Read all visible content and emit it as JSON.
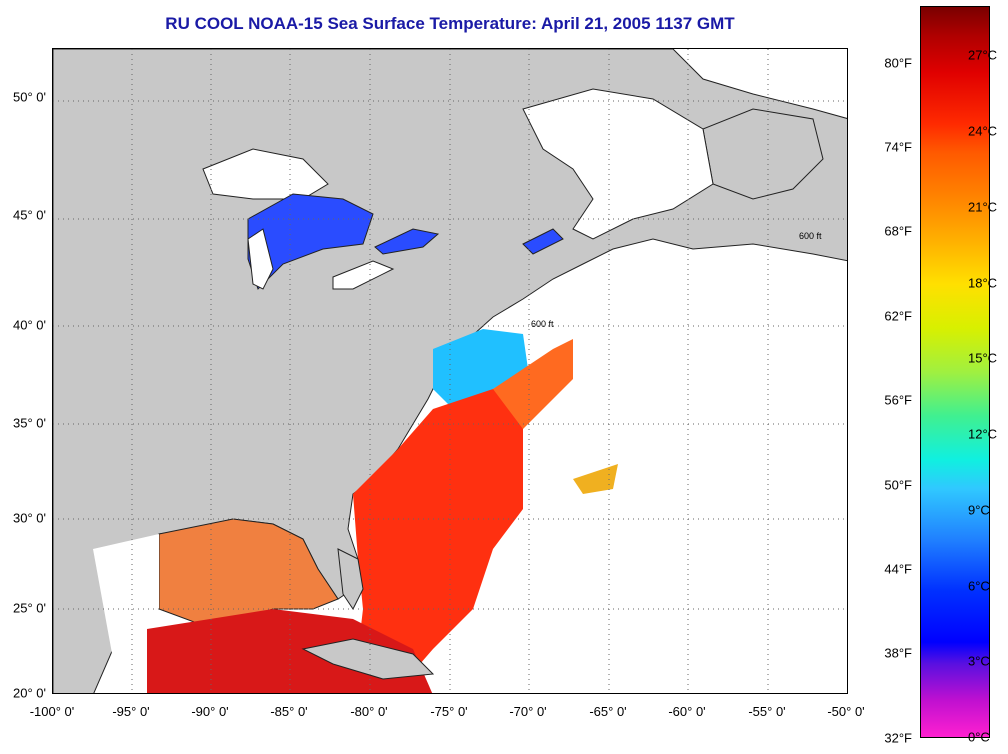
{
  "title": "RU COOL  NOAA-15  Sea Surface Temperature:  April 21, 2005 1137 GMT",
  "map": {
    "lat_labels": [
      "50° 0'",
      "45° 0'",
      "40° 0'",
      "35° 0'",
      "30° 0'",
      "25° 0'",
      "20° 0'"
    ],
    "lon_labels": [
      "-100° 0'",
      "-95° 0'",
      "-90° 0'",
      "-85° 0'",
      "-80° 0'",
      "-75° 0'",
      "-70° 0'",
      "-65° 0'",
      "-60° 0'",
      "-55° 0'",
      "-50° 0'"
    ],
    "lat_range": [
      20,
      52.3
    ],
    "lon_range": [
      -100,
      -50
    ],
    "isobath_label": "600 ft",
    "colors": {
      "land": "#c8c8c8",
      "no_data": "#ffffff",
      "lakes": "#2a4cff",
      "gulf": "#f08040",
      "gulf_stream": "#ff3010",
      "caribbean": "#d81818",
      "shelf": "#20c0ff"
    }
  },
  "colorbar": {
    "celsius": [
      "27°C",
      "24°C",
      "21°C",
      "18°C",
      "15°C",
      "12°C",
      "9°C",
      "6°C",
      "3°C",
      "0°C"
    ],
    "fahrenheit": [
      "80°F",
      "74°F",
      "68°F",
      "62°F",
      "56°F",
      "50°F",
      "44°F",
      "38°F",
      "32°F"
    ]
  }
}
